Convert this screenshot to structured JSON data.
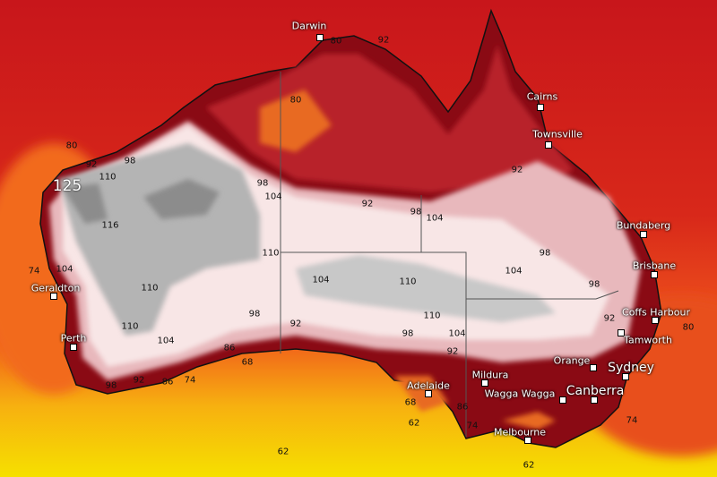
{
  "map": {
    "type": "temperature forecast map (°F)",
    "colors": {
      "ocean_north": "#c8161b",
      "ocean_mid": "#e8401a",
      "ocean_south": "#f7d400",
      "land_coast": "#8a0a14",
      "land_hot": "#f4dada",
      "land_hottest": "#a6a6a6"
    },
    "max_label": "125",
    "cities": [
      {
        "name": "Darwin"
      },
      {
        "name": "Cairns"
      },
      {
        "name": "Townsville"
      },
      {
        "name": "Bundaberg"
      },
      {
        "name": "Brisbane"
      },
      {
        "name": "Coffs Harbour"
      },
      {
        "name": "Tamworth"
      },
      {
        "name": "Geraldton"
      },
      {
        "name": "Perth"
      },
      {
        "name": "Adelaide"
      },
      {
        "name": "Mildura"
      },
      {
        "name": "Wagga Wagga"
      },
      {
        "name": "Orange"
      },
      {
        "name": "Sydney"
      },
      {
        "name": "Canberra"
      },
      {
        "name": "Melbourne"
      }
    ],
    "contour_labels": [
      "80",
      "92",
      "98",
      "110",
      "116",
      "104",
      "74",
      "110",
      "110",
      "104",
      "98",
      "92",
      "86",
      "68",
      "98",
      "92",
      "86",
      "74",
      "80",
      "98",
      "104",
      "92",
      "98",
      "104",
      "110",
      "104",
      "110",
      "110",
      "98",
      "104",
      "92",
      "98",
      "104",
      "98",
      "92",
      "74",
      "62",
      "62",
      "74",
      "80",
      "86",
      "68",
      "62",
      "92",
      "80",
      "92"
    ]
  }
}
